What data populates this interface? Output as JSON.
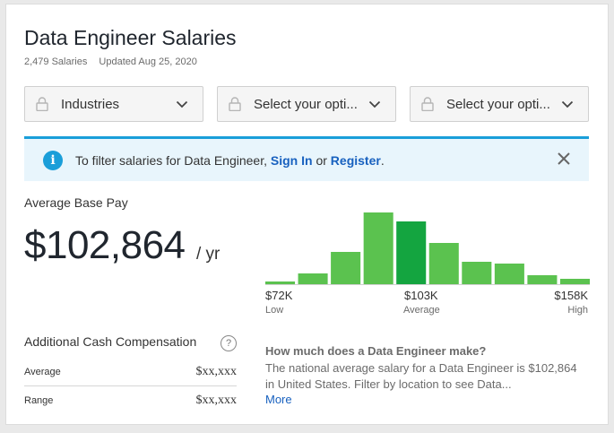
{
  "header": {
    "title": "Data Engineer Salaries",
    "salary_count": "2,479 Salaries",
    "updated": "Updated Aug 25, 2020"
  },
  "filters": [
    {
      "label": "Industries",
      "icon": "lock-icon"
    },
    {
      "label": "Select your opti...",
      "icon": "lock-icon"
    },
    {
      "label": "Select your opti...",
      "icon": "lock-icon"
    }
  ],
  "banner": {
    "prefix": "To filter salaries for Data Engineer, ",
    "sign_in": "Sign In",
    "middle": " or ",
    "register": "Register",
    "suffix": ".",
    "accent": "#1a9ed9"
  },
  "pay": {
    "label": "Average Base Pay",
    "value": "$102,864",
    "unit": "/ yr"
  },
  "chart_data": {
    "type": "bar",
    "values": [
      3,
      12,
      36,
      80,
      70,
      46,
      25,
      23,
      10,
      6
    ],
    "highlight_index": 4,
    "colors": {
      "bar": "#5bc24f",
      "highlight": "#14a540"
    },
    "ticks": [
      {
        "value": "$72K",
        "sub": "Low"
      },
      {
        "value": "$103K",
        "sub": "Average"
      },
      {
        "value": "$158K",
        "sub": "High"
      }
    ]
  },
  "additional": {
    "label": "Additional Cash Compensation",
    "help": "?",
    "rows": [
      {
        "label": "Average",
        "value": "$xx,xxx"
      },
      {
        "label": "Range",
        "value": "$xx,xxx"
      }
    ]
  },
  "faq": {
    "question": "How much does a Data Engineer make?",
    "answer": "The national average salary for a Data Engineer is $102,864 in United States. Filter by location to see Data...",
    "more": "More"
  }
}
